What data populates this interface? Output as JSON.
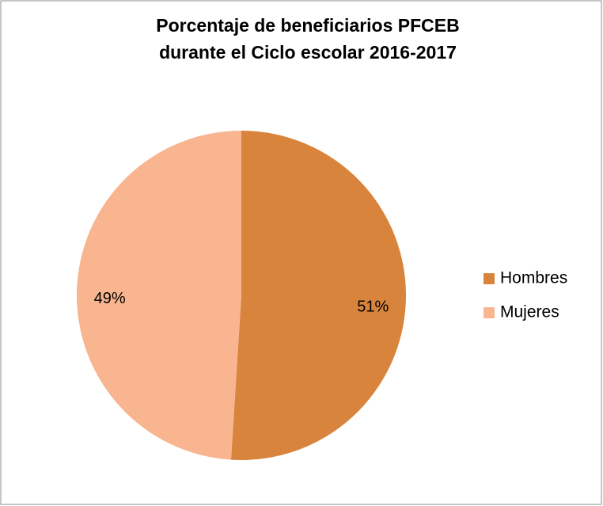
{
  "chart_data": {
    "type": "pie",
    "title": [
      "Porcentaje de beneficiarios PFCEB",
      "durante el Ciclo escolar 2016-2017"
    ],
    "categories": [
      "Hombres",
      "Mujeres"
    ],
    "values": [
      51,
      49
    ],
    "value_labels": [
      "51%",
      "49%"
    ],
    "colors": [
      "#d9843c",
      "#f8b58f"
    ],
    "legend": "right"
  }
}
